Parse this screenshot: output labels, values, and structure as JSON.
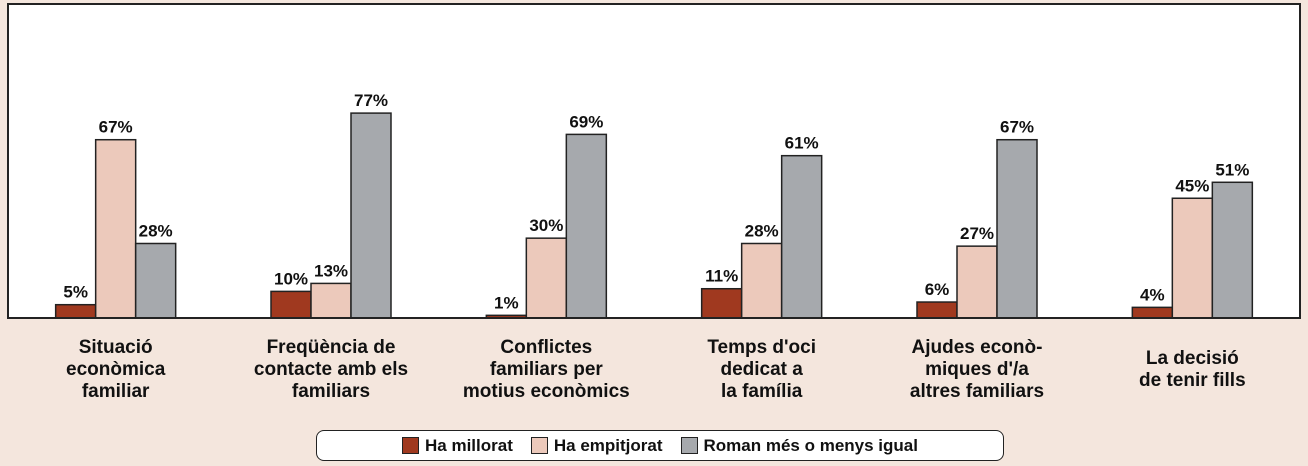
{
  "chart_data": {
    "type": "bar",
    "categories": [
      "Situació\necon​òmica\nfamiliar",
      "Freqüència de\ncontacte amb els\nfamiliars",
      "Conflictes\nfamiliars per\nmotius econòmics",
      "Temps d'oci\ndedicat a\nla família",
      "Ajudes econò-\nmiques d'/a\naltres familiars",
      "La decisió\nde tenir fills"
    ],
    "series": [
      {
        "name": "Ha millorat",
        "color": "#a0391f",
        "values": [
          5,
          10,
          1,
          11,
          6,
          4
        ],
        "value_labels": [
          "5%",
          "10%",
          "1%",
          "11%",
          "6%",
          "4%"
        ]
      },
      {
        "name": "Ha empitjorat",
        "color": "#ecc9bb",
        "values": [
          67,
          13,
          30,
          28,
          27,
          45
        ],
        "value_labels": [
          "67%",
          "13%",
          "30%",
          "28%",
          "27%",
          "45%"
        ]
      },
      {
        "name": "Roman més o menys igual",
        "color": "#a6a9ad",
        "values": [
          28,
          77,
          69,
          61,
          67,
          51
        ],
        "value_labels": [
          "28%",
          "77%",
          "69%",
          "61%",
          "67%",
          "51%"
        ]
      }
    ],
    "ylim": [
      0,
      118
    ],
    "legend": "bottom"
  }
}
